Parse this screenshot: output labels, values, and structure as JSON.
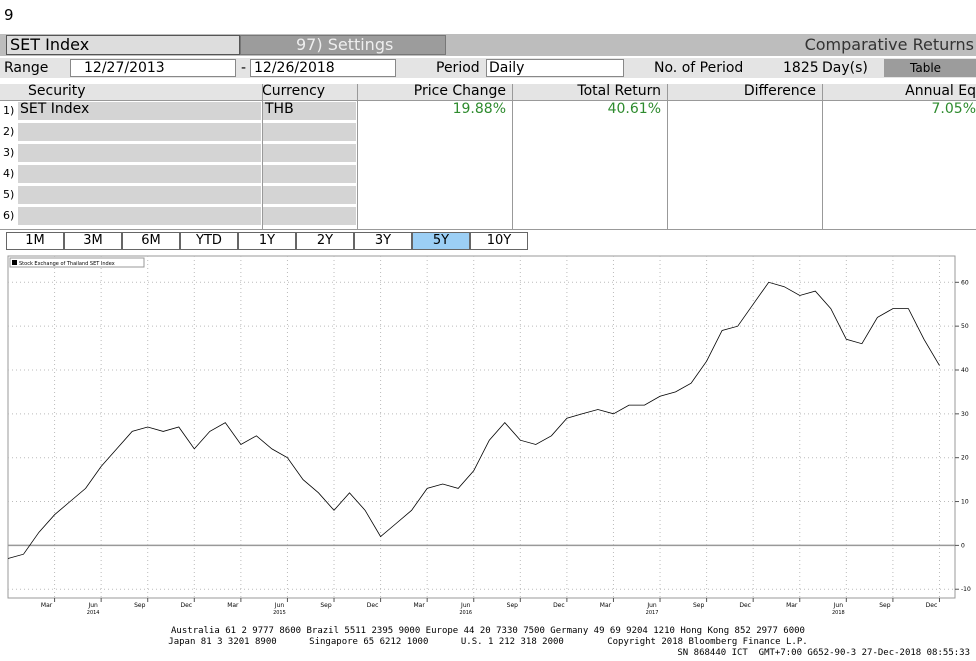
{
  "header": {
    "number": "9",
    "security": "SET Index",
    "settings": "97) Settings",
    "function": "Comparative Returns"
  },
  "range": {
    "label": "Range",
    "start": "12/27/2013",
    "sep": "-",
    "end": "12/26/2018",
    "period_label": "Period",
    "period": "Daily",
    "count_label": "No. of Period",
    "count": "1825",
    "unit": "Day(s)",
    "view": "Table"
  },
  "table": {
    "headers": [
      "Security",
      "Currency",
      "Price Change",
      "Total Return",
      "Difference",
      "Annual Eq"
    ],
    "rows": [
      [
        "1)",
        "SET Index",
        "THB",
        "19.88%",
        "40.61%",
        "7.05%"
      ],
      [
        "2)"
      ],
      [
        "3)"
      ],
      [
        "4)"
      ],
      [
        "5)"
      ],
      [
        "6)"
      ]
    ]
  },
  "buttons": {
    "items": [
      "1M",
      "3M",
      "6M",
      "YTD",
      "1Y",
      "2Y",
      "3Y",
      "5Y",
      "10Y"
    ],
    "selected": "5Y"
  },
  "chart_data": {
    "type": "line",
    "grid": true,
    "series": [
      {
        "name": "Stock Exchange of Thailand SET Index",
        "color": "#000000",
        "x": [
          "2013-12",
          "2014-01",
          "2014-02",
          "2014-03",
          "2014-04",
          "2014-05",
          "2014-06",
          "2014-07",
          "2014-08",
          "2014-09",
          "2014-10",
          "2014-11",
          "2014-12",
          "2015-01",
          "2015-02",
          "2015-03",
          "2015-04",
          "2015-05",
          "2015-06",
          "2015-07",
          "2015-08",
          "2015-09",
          "2015-10",
          "2015-11",
          "2015-12",
          "2016-01",
          "2016-02",
          "2016-03",
          "2016-04",
          "2016-05",
          "2016-06",
          "2016-07",
          "2016-08",
          "2016-09",
          "2016-10",
          "2016-11",
          "2016-12",
          "2017-01",
          "2017-02",
          "2017-03",
          "2017-04",
          "2017-05",
          "2017-06",
          "2017-07",
          "2017-08",
          "2017-09",
          "2017-10",
          "2017-11",
          "2017-12",
          "2018-01",
          "2018-02",
          "2018-03",
          "2018-04",
          "2018-05",
          "2018-06",
          "2018-07",
          "2018-08",
          "2018-09",
          "2018-10",
          "2018-11",
          "2018-12"
        ],
        "values": [
          -3,
          -2,
          3,
          7,
          10,
          13,
          18,
          22,
          26,
          27,
          26,
          27,
          22,
          26,
          28,
          23,
          25,
          22,
          20,
          15,
          12,
          8,
          12,
          8,
          2,
          5,
          8,
          13,
          14,
          13,
          17,
          24,
          28,
          24,
          23,
          25,
          29,
          30,
          31,
          30,
          32,
          32,
          34,
          35,
          37,
          42,
          49,
          50,
          55,
          60,
          59,
          57,
          58,
          54,
          47,
          46,
          52,
          54,
          54,
          47,
          41
        ]
      }
    ],
    "xlim": [
      "2013-12",
      "2019-01"
    ],
    "ylim": [
      -12,
      66
    ],
    "yticks": [
      -10,
      0,
      10,
      20,
      30,
      40,
      50,
      60
    ],
    "xticks": [
      {
        "value": "2014-03",
        "label": "Mar"
      },
      {
        "value": "2014-06",
        "label": "Jun"
      },
      {
        "value": "2014-09",
        "label": "Sep"
      },
      {
        "value": "2014-12",
        "label": "Dec"
      },
      {
        "value": "2015-03",
        "label": "Mar"
      },
      {
        "value": "2015-06",
        "label": "Jun"
      },
      {
        "value": "2015-09",
        "label": "Sep"
      },
      {
        "value": "2015-12",
        "label": "Dec"
      },
      {
        "value": "2016-03",
        "label": "Mar"
      },
      {
        "value": "2016-06",
        "label": "Jun"
      },
      {
        "value": "2016-09",
        "label": "Sep"
      },
      {
        "value": "2016-12",
        "label": "Dec"
      },
      {
        "value": "2017-03",
        "label": "Mar"
      },
      {
        "value": "2017-06",
        "label": "Jun"
      },
      {
        "value": "2017-09",
        "label": "Sep"
      },
      {
        "value": "2017-12",
        "label": "Dec"
      },
      {
        "value": "2018-03",
        "label": "Mar"
      },
      {
        "value": "2018-06",
        "label": "Jun"
      },
      {
        "value": "2018-09",
        "label": "Sep"
      },
      {
        "value": "2018-12",
        "label": "Dec"
      }
    ],
    "year_labels": [
      {
        "value": "2014-06",
        "label": "2014"
      },
      {
        "value": "2015-06",
        "label": "2015"
      },
      {
        "value": "2016-06",
        "label": "2016"
      },
      {
        "value": "2017-06",
        "label": "2017"
      },
      {
        "value": "2018-06",
        "label": "2018"
      }
    ]
  },
  "footer": [
    "Australia 61 2 9777 8600 Brazil 5511 2395 9000 Europe 44 20 7330 7500 Germany 49 69 9204 1210 Hong Kong 852 2977 6000",
    "Japan 81 3 3201 8900      Singapore 65 6212 1000      U.S. 1 212 318 2000        Copyright 2018 Bloomberg Finance L.P.",
    "SN 868440 ICT  GMT+7:00 G652-90-3 27-Dec-2018 08:55:33"
  ]
}
